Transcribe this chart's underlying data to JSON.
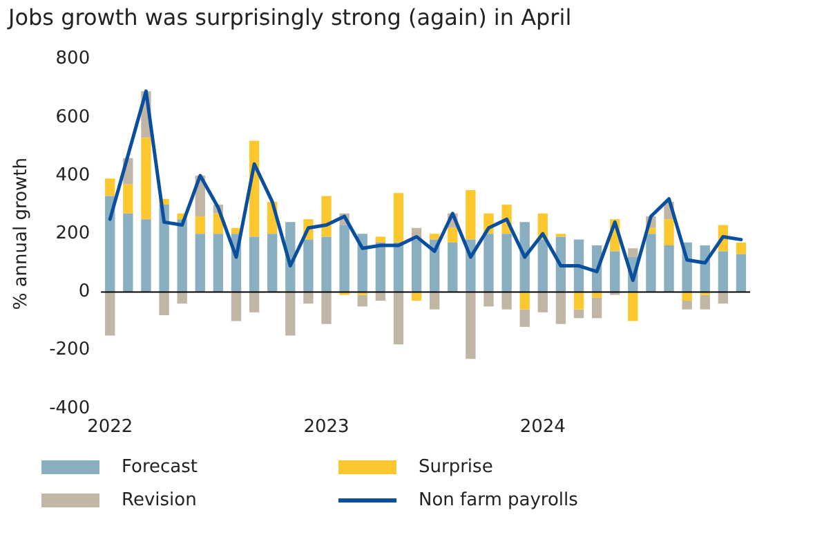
{
  "chart_data": {
    "type": "bar",
    "title": "Jobs growth was surprisingly strong (again) in April",
    "ylabel": "% annual growth",
    "stacked": true,
    "grid": false,
    "legend": "bottom",
    "marker": "none",
    "categories": [
      "2022",
      null,
      null,
      null,
      null,
      null,
      null,
      null,
      null,
      null,
      null,
      null,
      "2023",
      null,
      null,
      null,
      null,
      null,
      null,
      null,
      null,
      null,
      null,
      null,
      "2024",
      null,
      null,
      null,
      null,
      null,
      null,
      null,
      null,
      null,
      null,
      null
    ],
    "ylim": [
      -400,
      800
    ],
    "yticks": [
      -400,
      -200,
      0,
      200,
      400,
      600,
      800
    ],
    "ref_lines": [
      {
        "axis": "y",
        "value": 0,
        "color": "#000000"
      }
    ],
    "series": [
      {
        "name": "Forecast",
        "color": "#8aafc0",
        "values": [
          330,
          270,
          250,
          300,
          250,
          200,
          200,
          200,
          190,
          200,
          240,
          180,
          190,
          230,
          200,
          170,
          170,
          180,
          180,
          170,
          180,
          200,
          200,
          240,
          180,
          190,
          180,
          160,
          140,
          120,
          200,
          160,
          170,
          160,
          140,
          130
        ]
      },
      {
        "name": "Surprise",
        "color": "#fdc82f",
        "values": [
          60,
          100,
          280,
          20,
          20,
          60,
          70,
          20,
          330,
          110,
          null,
          70,
          140,
          -10,
          -10,
          20,
          170,
          -30,
          20,
          50,
          170,
          70,
          100,
          -60,
          90,
          10,
          -60,
          -20,
          110,
          -100,
          20,
          90,
          -30,
          -10,
          90,
          40
        ]
      },
      {
        "name": "Revision",
        "color": "#c1b6a6",
        "values": [
          -150,
          90,
          160,
          -80,
          -40,
          140,
          30,
          -100,
          -70,
          null,
          -150,
          -40,
          -110,
          40,
          -40,
          -30,
          -180,
          40,
          -60,
          50,
          -230,
          -50,
          -60,
          -60,
          -70,
          -110,
          -30,
          -70,
          -10,
          30,
          40,
          60,
          -30,
          -50,
          -40,
          null
        ]
      },
      {
        "name": "Non farm payrolls",
        "color": "#0a4f9e",
        "type": "line",
        "values": [
          250,
          470,
          690,
          240,
          230,
          400,
          290,
          120,
          440,
          310,
          90,
          220,
          230,
          260,
          150,
          160,
          160,
          190,
          140,
          270,
          120,
          220,
          250,
          120,
          200,
          90,
          90,
          70,
          240,
          40,
          260,
          320,
          110,
          100,
          190,
          180
        ]
      }
    ]
  }
}
